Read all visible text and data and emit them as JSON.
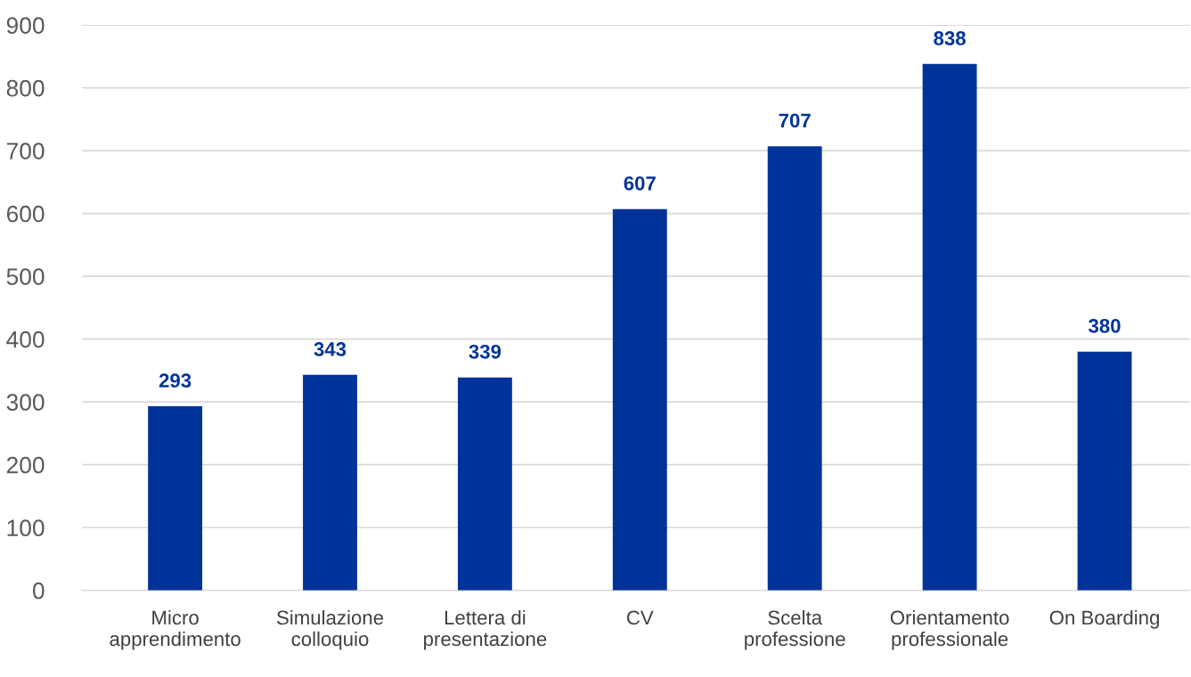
{
  "chart_data": {
    "type": "bar",
    "categories": [
      "Micro\napprendimento",
      "Simulazione\ncolloquio",
      "Lettera di\npresentazione",
      "CV",
      "Scelta\nprofessione",
      "Orientamento\nprofessionale",
      "On Boarding"
    ],
    "values": [
      293,
      343,
      339,
      607,
      707,
      838,
      380
    ],
    "color": "#003399",
    "ylim": [
      0,
      900
    ],
    "yticks": [
      0,
      100,
      200,
      300,
      400,
      500,
      600,
      700,
      800,
      900
    ],
    "grid": "y",
    "data_labels": true
  }
}
